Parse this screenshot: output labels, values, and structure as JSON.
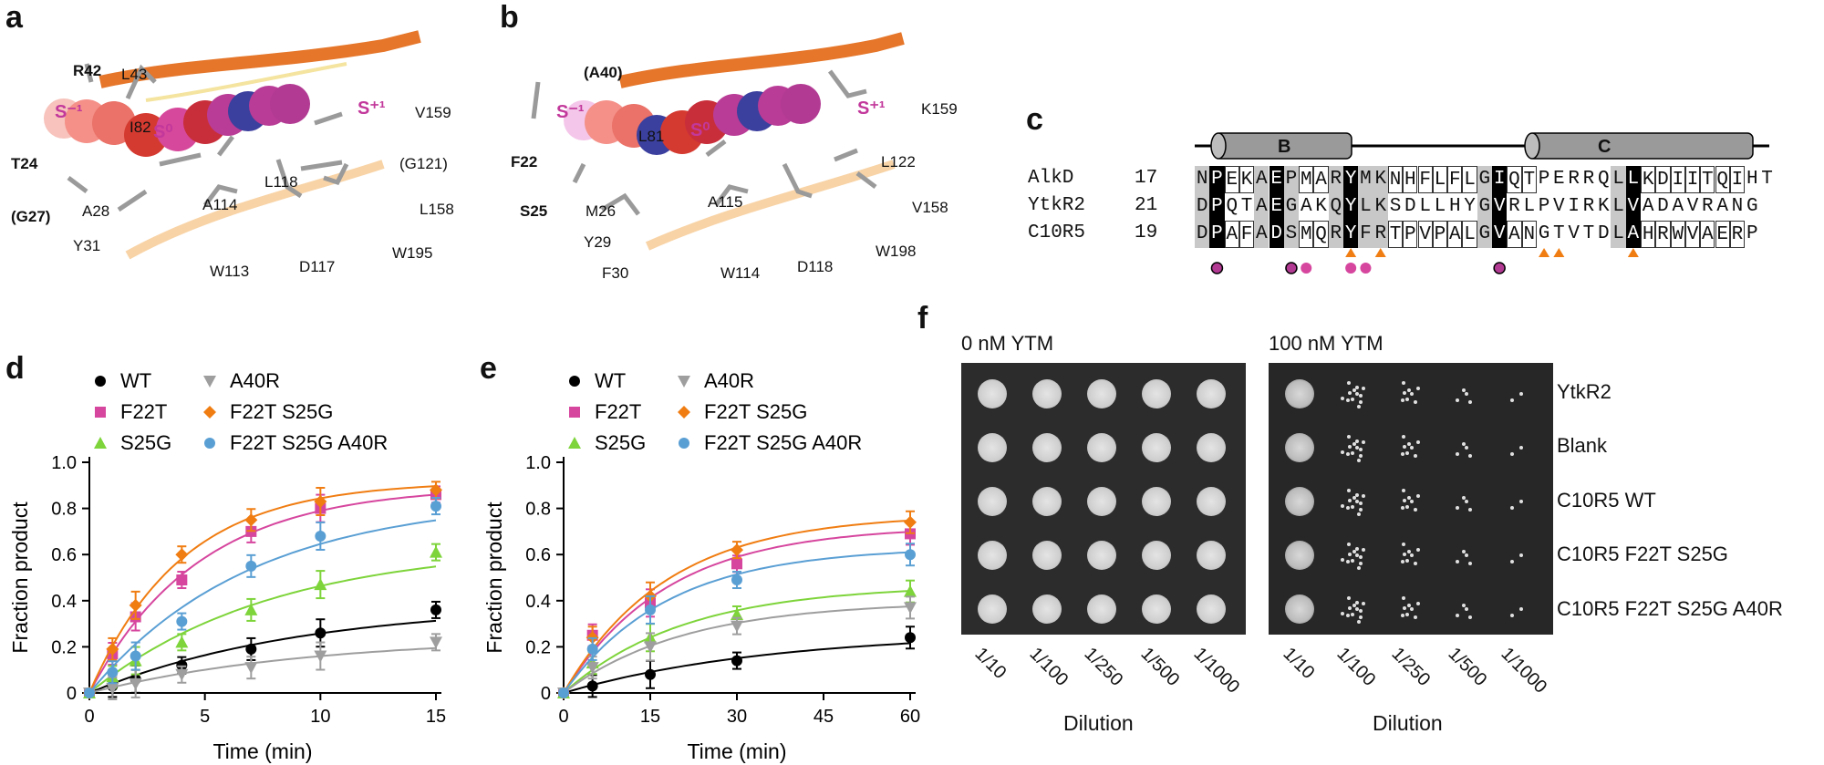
{
  "panels": {
    "a": {
      "letter": "a",
      "labels": [
        "R42",
        "L43",
        "S⁻¹",
        "S⁰",
        "S⁺¹",
        "V159",
        "I82",
        "(G121)",
        "T24",
        "L118",
        "L158",
        "A114",
        "(G27)",
        "A28",
        "Y31",
        "W195",
        "W113",
        "D117"
      ]
    },
    "b": {
      "letter": "b",
      "labels": [
        "(A40)",
        "S⁻¹",
        "S⁰",
        "S⁺¹",
        "K159",
        "F22",
        "L81",
        "L122",
        "S25",
        "M26",
        "A115",
        "V158",
        "Y29",
        "W198",
        "F30",
        "W114",
        "D118"
      ]
    },
    "c": {
      "letter": "c",
      "helix_labels": [
        "B",
        "C"
      ],
      "rows": [
        {
          "name": "AlkD",
          "start": "17",
          "seq": "NPEKAEPMARYMKNHFLFLGIQTPERRQLLKDIITQIHT"
        },
        {
          "name": "YtkR2",
          "start": "21",
          "seq": "DPQTAEGAKQYLKSDLLHYGVRLPVIRKLVADAVRANG"
        },
        {
          "name": "C10R5",
          "start": "19",
          "seq": "DPAFADSMQRYFRTPVPALGVANGTVTDLAHRWVAERP"
        }
      ]
    },
    "d": {
      "letter": "d",
      "legend": [
        "WT",
        "F22T",
        "S25G",
        "A40R",
        "F22T S25G",
        "F22T S25G A40R"
      ],
      "xlabel": "Time (min)",
      "ylabel": "Fraction product"
    },
    "e": {
      "letter": "e",
      "legend": [
        "WT",
        "F22T",
        "S25G",
        "A40R",
        "F22T S25G",
        "F22T S25G A40R"
      ],
      "xlabel": "Time (min)",
      "ylabel": "Fraction product"
    },
    "f": {
      "letter": "f",
      "conditions": [
        "0 nM YTM",
        "100 nM YTM"
      ],
      "rows": [
        "YtkR2",
        "Blank",
        "C10R5 WT",
        "C10R5 F22T S25G",
        "C10R5 F22T S25G A40R"
      ],
      "dilutions": [
        "1/10",
        "1/100",
        "1/250",
        "1/500",
        "1/1000"
      ],
      "xlabel": "Dilution"
    }
  },
  "chart_data": [
    {
      "type": "line",
      "xlabel": "Time (min)",
      "ylabel": "Fraction product",
      "xlim": [
        0,
        15
      ],
      "ylim": [
        0,
        1.0
      ],
      "xticks": [
        0,
        5,
        10,
        15
      ],
      "yticks": [
        0,
        0.2,
        0.4,
        0.6,
        0.8,
        1.0
      ],
      "x": [
        0,
        1,
        2,
        4,
        7,
        10,
        15
      ],
      "series": [
        {
          "name": "WT",
          "color": "#000000",
          "marker": "circle",
          "values": [
            0,
            0.03,
            0.06,
            0.12,
            0.19,
            0.26,
            0.36
          ]
        },
        {
          "name": "F22T",
          "color": "#d6469e",
          "marker": "square",
          "values": [
            0,
            0.17,
            0.33,
            0.49,
            0.7,
            0.8,
            0.86
          ]
        },
        {
          "name": "S25G",
          "color": "#7ed43b",
          "marker": "triangle-up",
          "values": [
            0,
            0.07,
            0.14,
            0.22,
            0.36,
            0.47,
            0.61
          ]
        },
        {
          "name": "A40R",
          "color": "#9e9e9e",
          "marker": "triangle-down",
          "values": [
            0,
            0.02,
            0.04,
            0.08,
            0.11,
            0.16,
            0.22
          ]
        },
        {
          "name": "F22T S25G",
          "color": "#f07d12",
          "marker": "diamond",
          "values": [
            0,
            0.19,
            0.38,
            0.6,
            0.75,
            0.83,
            0.88
          ]
        },
        {
          "name": "F22T S25G A40R",
          "color": "#5a9fd4",
          "marker": "circle",
          "values": [
            0,
            0.09,
            0.16,
            0.31,
            0.55,
            0.68,
            0.81
          ]
        }
      ]
    },
    {
      "type": "line",
      "xlabel": "Time (min)",
      "ylabel": "Fraction product",
      "xlim": [
        0,
        60
      ],
      "ylim": [
        0,
        1.0
      ],
      "xticks": [
        0,
        15,
        30,
        45,
        60
      ],
      "yticks": [
        0,
        0.2,
        0.4,
        0.6,
        0.8,
        1.0
      ],
      "x": [
        0,
        5,
        15,
        30,
        60
      ],
      "series": [
        {
          "name": "WT",
          "color": "#000000",
          "marker": "circle",
          "values": [
            0,
            0.03,
            0.08,
            0.14,
            0.24
          ]
        },
        {
          "name": "F22T",
          "color": "#d6469e",
          "marker": "square",
          "values": [
            0,
            0.25,
            0.39,
            0.56,
            0.69
          ]
        },
        {
          "name": "S25G",
          "color": "#7ed43b",
          "marker": "triangle-up",
          "values": [
            0,
            0.13,
            0.24,
            0.34,
            0.44
          ]
        },
        {
          "name": "A40R",
          "color": "#9e9e9e",
          "marker": "triangle-down",
          "values": [
            0,
            0.11,
            0.2,
            0.29,
            0.37
          ]
        },
        {
          "name": "F22T S25G",
          "color": "#f07d12",
          "marker": "diamond",
          "values": [
            0,
            0.24,
            0.42,
            0.62,
            0.74
          ]
        },
        {
          "name": "F22T S25G A40R",
          "color": "#5a9fd4",
          "marker": "circle",
          "values": [
            0,
            0.19,
            0.36,
            0.49,
            0.6
          ]
        }
      ]
    }
  ]
}
